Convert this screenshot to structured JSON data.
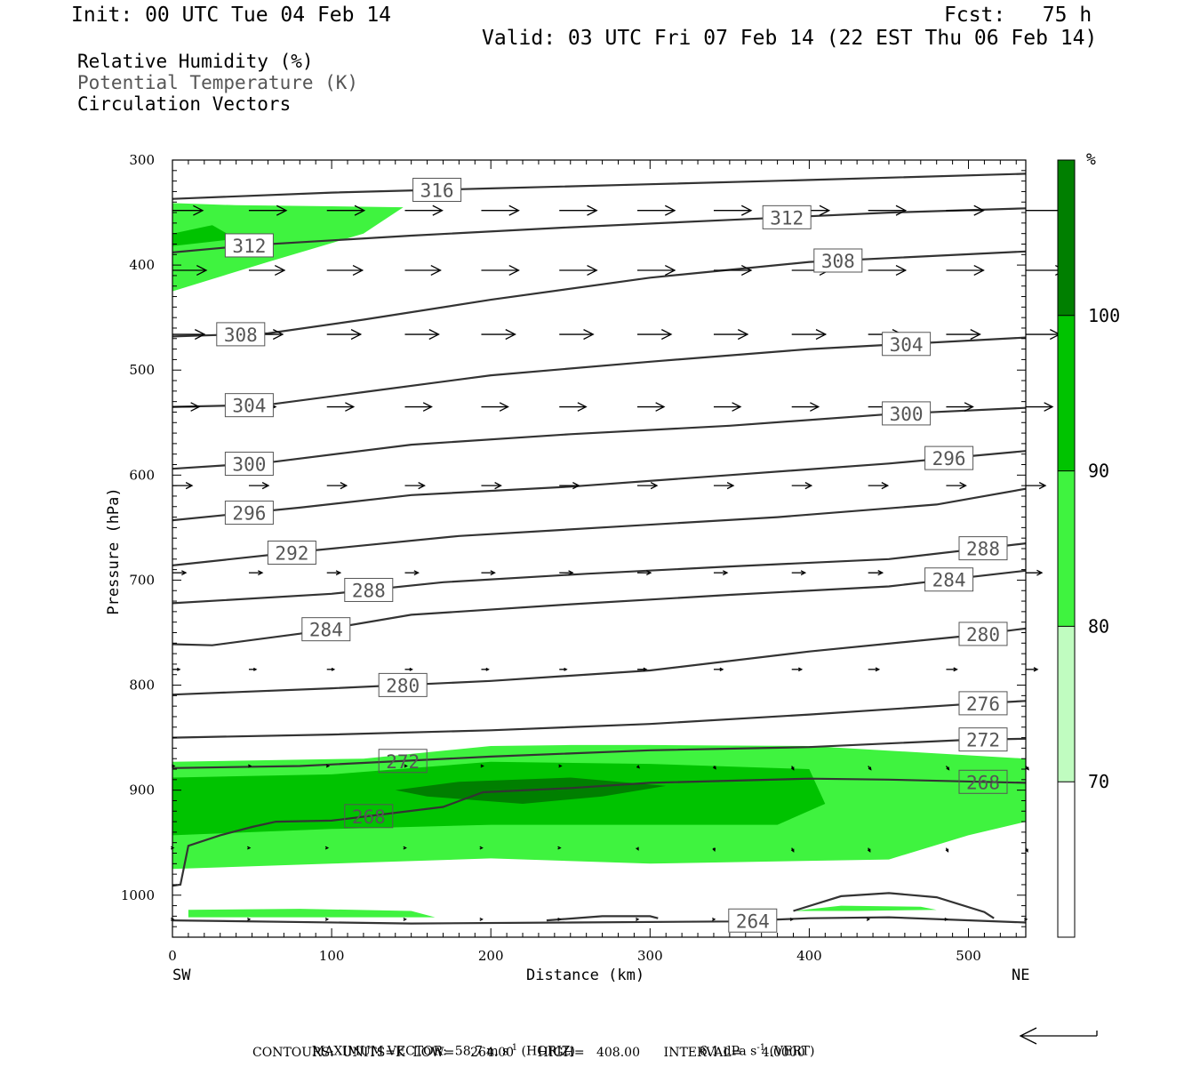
{
  "header": {
    "init": "Init: 00 UTC Tue 04 Feb 14",
    "fcst": "Fcst:   75 h",
    "valid": "Valid: 03 UTC Fri 07 Feb 14 (22 EST Thu 06 Feb 14)"
  },
  "legend_lines": {
    "rh": "Relative Humidity (%)",
    "theta": "Potential Temperature (K)",
    "vectors": "Circulation Vectors"
  },
  "chart_data": {
    "type": "cross-section",
    "x_axis": {
      "label": "Distance (km)",
      "range": [
        0,
        536
      ],
      "ticks": [
        0,
        100,
        200,
        300,
        400,
        500
      ],
      "left_end_label": "SW",
      "right_end_label": "NE"
    },
    "y_axis": {
      "label": "Pressure (hPa)",
      "range": [
        300,
        1040
      ],
      "inverted": true,
      "ticks": [
        300,
        400,
        500,
        600,
        700,
        800,
        900,
        1000
      ]
    },
    "colorbar": {
      "unit_label": "%",
      "levels": [
        70,
        80,
        90,
        100
      ],
      "colors": [
        "#ffffff",
        "#c0fcc0",
        "#3ff33f",
        "#00c300",
        "#007f00"
      ]
    },
    "theta_contours": [
      {
        "label": "316",
        "points": [
          [
            0,
            337
          ],
          [
            100,
            331
          ],
          [
            200,
            327
          ],
          [
            300,
            323
          ],
          [
            400,
            319
          ],
          [
            536,
            313
          ]
        ]
      },
      {
        "label": "312",
        "points": [
          [
            0,
            388
          ],
          [
            50,
            381
          ],
          [
            150,
            372
          ],
          [
            250,
            364
          ],
          [
            350,
            357
          ],
          [
            450,
            350
          ],
          [
            536,
            346
          ]
        ]
      },
      {
        "label": "308",
        "points": [
          [
            0,
            468
          ],
          [
            60,
            465
          ],
          [
            120,
            452
          ],
          [
            200,
            433
          ],
          [
            300,
            412
          ],
          [
            400,
            397
          ],
          [
            536,
            387
          ]
        ]
      },
      {
        "label": "304",
        "points": [
          [
            0,
            535
          ],
          [
            60,
            533
          ],
          [
            120,
            521
          ],
          [
            200,
            505
          ],
          [
            300,
            492
          ],
          [
            400,
            480
          ],
          [
            536,
            469
          ]
        ]
      },
      {
        "label": "300",
        "points": [
          [
            0,
            594
          ],
          [
            60,
            588
          ],
          [
            150,
            571
          ],
          [
            250,
            561
          ],
          [
            350,
            553
          ],
          [
            450,
            542
          ],
          [
            536,
            536
          ]
        ]
      },
      {
        "label": "296",
        "points": [
          [
            0,
            643
          ],
          [
            80,
            631
          ],
          [
            150,
            619
          ],
          [
            250,
            611
          ],
          [
            350,
            600
          ],
          [
            450,
            589
          ],
          [
            536,
            577
          ]
        ]
      },
      {
        "label": "292",
        "points": [
          [
            0,
            686
          ],
          [
            80,
            673
          ],
          [
            180,
            658
          ],
          [
            280,
            649
          ],
          [
            380,
            640
          ],
          [
            480,
            628
          ],
          [
            536,
            613
          ]
        ]
      },
      {
        "label": "288",
        "points": [
          [
            0,
            722
          ],
          [
            100,
            713
          ],
          [
            170,
            702
          ],
          [
            260,
            694
          ],
          [
            350,
            687
          ],
          [
            450,
            680
          ],
          [
            536,
            665
          ]
        ]
      },
      {
        "label": "284",
        "points": [
          [
            0,
            761
          ],
          [
            25,
            762
          ],
          [
            80,
            751
          ],
          [
            150,
            733
          ],
          [
            250,
            723
          ],
          [
            350,
            714
          ],
          [
            450,
            706
          ],
          [
            536,
            691
          ]
        ]
      },
      {
        "label": "280",
        "points": [
          [
            0,
            809
          ],
          [
            100,
            803
          ],
          [
            200,
            796
          ],
          [
            300,
            786
          ],
          [
            400,
            768
          ],
          [
            500,
            753
          ],
          [
            536,
            746
          ]
        ]
      },
      {
        "label": "276",
        "points": [
          [
            0,
            850
          ],
          [
            100,
            847
          ],
          [
            200,
            843
          ],
          [
            300,
            837
          ],
          [
            400,
            828
          ],
          [
            500,
            818
          ],
          [
            536,
            815
          ]
        ]
      },
      {
        "label": "272",
        "points": [
          [
            0,
            879
          ],
          [
            80,
            877
          ],
          [
            200,
            868
          ],
          [
            300,
            862
          ],
          [
            400,
            859
          ],
          [
            500,
            852
          ],
          [
            536,
            851
          ]
        ]
      },
      {
        "label": "268",
        "points": [
          [
            0,
            991
          ],
          [
            5,
            990
          ],
          [
            10,
            953
          ],
          [
            30,
            943
          ],
          [
            50,
            935
          ],
          [
            65,
            930
          ],
          [
            100,
            929
          ],
          [
            170,
            916
          ],
          [
            195,
            902
          ],
          [
            250,
            898
          ],
          [
            300,
            893
          ],
          [
            400,
            889
          ],
          [
            450,
            890
          ],
          [
            536,
            893
          ]
        ]
      },
      {
        "label": "264",
        "points": [
          [
            0,
            1024
          ],
          [
            150,
            1027
          ],
          [
            250,
            1026
          ],
          [
            350,
            1025
          ],
          [
            400,
            1022
          ],
          [
            450,
            1021
          ],
          [
            536,
            1026
          ]
        ]
      }
    ],
    "theta_extra_264": {
      "label": "",
      "points": [
        [
          390,
          1015
        ],
        [
          420,
          1001
        ],
        [
          450,
          998
        ],
        [
          480,
          1002
        ],
        [
          510,
          1016
        ],
        [
          516,
          1022
        ]
      ]
    },
    "theta_extra_small": {
      "label": "",
      "points": [
        [
          235,
          1024
        ],
        [
          270,
          1020
        ],
        [
          300,
          1020
        ],
        [
          305,
          1022
        ]
      ]
    },
    "rh_shading": [
      {
        "level": 80,
        "points": [
          [
            0,
            341
          ],
          [
            40,
            343
          ],
          [
            100,
            344
          ],
          [
            145,
            345
          ],
          [
            120,
            370
          ],
          [
            60,
            397
          ],
          [
            0,
            425
          ]
        ]
      },
      {
        "level": 90,
        "points": [
          [
            0,
            370
          ],
          [
            25,
            362
          ],
          [
            40,
            375
          ],
          [
            0,
            382
          ]
        ]
      },
      {
        "level": 80,
        "points": [
          [
            0,
            873
          ],
          [
            120,
            870
          ],
          [
            200,
            858
          ],
          [
            250,
            857
          ],
          [
            300,
            857
          ],
          [
            400,
            858
          ],
          [
            536,
            870
          ],
          [
            536,
            930
          ],
          [
            500,
            943
          ],
          [
            450,
            966
          ],
          [
            300,
            970
          ],
          [
            200,
            965
          ],
          [
            100,
            970
          ],
          [
            0,
            975
          ]
        ]
      },
      {
        "level": 90,
        "points": [
          [
            0,
            888
          ],
          [
            100,
            885
          ],
          [
            200,
            873
          ],
          [
            300,
            875
          ],
          [
            400,
            880
          ],
          [
            410,
            913
          ],
          [
            380,
            933
          ],
          [
            300,
            933
          ],
          [
            200,
            933
          ],
          [
            100,
            937
          ],
          [
            0,
            943
          ]
        ]
      },
      {
        "level": 100,
        "points": [
          [
            140,
            900
          ],
          [
            180,
            892
          ],
          [
            250,
            888
          ],
          [
            310,
            896
          ],
          [
            270,
            906
          ],
          [
            220,
            913
          ],
          [
            160,
            906
          ]
        ]
      },
      {
        "level": 80,
        "points": [
          [
            10,
            1014
          ],
          [
            80,
            1013
          ],
          [
            150,
            1015
          ],
          [
            165,
            1021
          ],
          [
            80,
            1021
          ],
          [
            10,
            1021
          ]
        ]
      },
      {
        "level": 80,
        "points": [
          [
            390,
            1015
          ],
          [
            420,
            1010
          ],
          [
            470,
            1011
          ],
          [
            480,
            1014
          ],
          [
            430,
            1015
          ]
        ]
      }
    ],
    "vector_rows": [
      {
        "p": 348,
        "dx": [
          34,
          42,
          42,
          42,
          42,
          42,
          42,
          42,
          42,
          42,
          42,
          48
        ],
        "dp": [
          0,
          0,
          0,
          0,
          0,
          0,
          0,
          0,
          0,
          0,
          0,
          0
        ]
      },
      {
        "p": 405,
        "dx": [
          38,
          40,
          40,
          40,
          42,
          42,
          42,
          42,
          42,
          42,
          42,
          44
        ],
        "dp": [
          0,
          0,
          0,
          0,
          0,
          0,
          0,
          0,
          0,
          0,
          0,
          0
        ]
      },
      {
        "p": 466,
        "dx": [
          36,
          38,
          38,
          38,
          38,
          38,
          38,
          38,
          38,
          38,
          38,
          38
        ],
        "dp": [
          0,
          0,
          0,
          0,
          0,
          0,
          0,
          0,
          0,
          0,
          0,
          0
        ]
      },
      {
        "p": 535,
        "dx": [
          30,
          30,
          30,
          30,
          30,
          30,
          30,
          30,
          30,
          30,
          30,
          30
        ],
        "dp": [
          0,
          0,
          0,
          0,
          0,
          0,
          0,
          0,
          0,
          0,
          0,
          0
        ]
      },
      {
        "p": 610,
        "dx": [
          22,
          22,
          22,
          22,
          22,
          22,
          22,
          22,
          22,
          22,
          22,
          22
        ],
        "dp": [
          0,
          0,
          0,
          0,
          0,
          0,
          0,
          0,
          0,
          0,
          0,
          0
        ]
      },
      {
        "p": 693,
        "dx": [
          15,
          15,
          15,
          15,
          15,
          15,
          15,
          15,
          15,
          16,
          16,
          18
        ],
        "dp": [
          0,
          0,
          0,
          0,
          0,
          0,
          0,
          0,
          0,
          0,
          0,
          0
        ]
      },
      {
        "p": 785,
        "dx": [
          8,
          8,
          8,
          8,
          8,
          8,
          10,
          10,
          11,
          12,
          12,
          13
        ],
        "dp": [
          0,
          0,
          0,
          0,
          0,
          0,
          0,
          0,
          0,
          0,
          0,
          0
        ]
      },
      {
        "p": 877,
        "dx": [
          2,
          2,
          2,
          2,
          2,
          2,
          2,
          2,
          2,
          3,
          3,
          3
        ],
        "dp": [
          0,
          0,
          0,
          0,
          0,
          0,
          2,
          3,
          4,
          4,
          4,
          4
        ]
      },
      {
        "p": 955,
        "dx": [
          1,
          1,
          1,
          1,
          1,
          1,
          1,
          1,
          2,
          2,
          2,
          2
        ],
        "dp": [
          0,
          0,
          0,
          0,
          0,
          0,
          2,
          3,
          4,
          4,
          4,
          4
        ]
      },
      {
        "p": 1023,
        "dx": [
          1,
          1,
          1,
          1,
          1,
          1,
          1,
          1,
          1,
          1,
          1,
          1
        ],
        "dp": [
          0,
          0,
          0,
          0,
          0,
          0,
          0,
          0,
          0,
          0,
          0,
          0
        ]
      }
    ],
    "vector_columns_km": [
      0,
      48,
      97,
      146,
      194,
      243,
      292,
      340,
      389,
      437,
      486,
      536
    ]
  },
  "footer": {
    "max_vector_prefix": "MAXIMUM VECTOR:",
    "max_horiz": "58.7 m s",
    "max_horiz_exp": "-1",
    "max_horiz_suffix": "(HORIZ)",
    "max_vert": "6.1 dPa s",
    "max_vert_exp": "-1",
    "max_vert_suffix": "(VERT)",
    "contours": "CONTOURS:  UNITS=K  LOW=    264.00      HIGH=   408.00      INTERVAL=     4.0000"
  }
}
